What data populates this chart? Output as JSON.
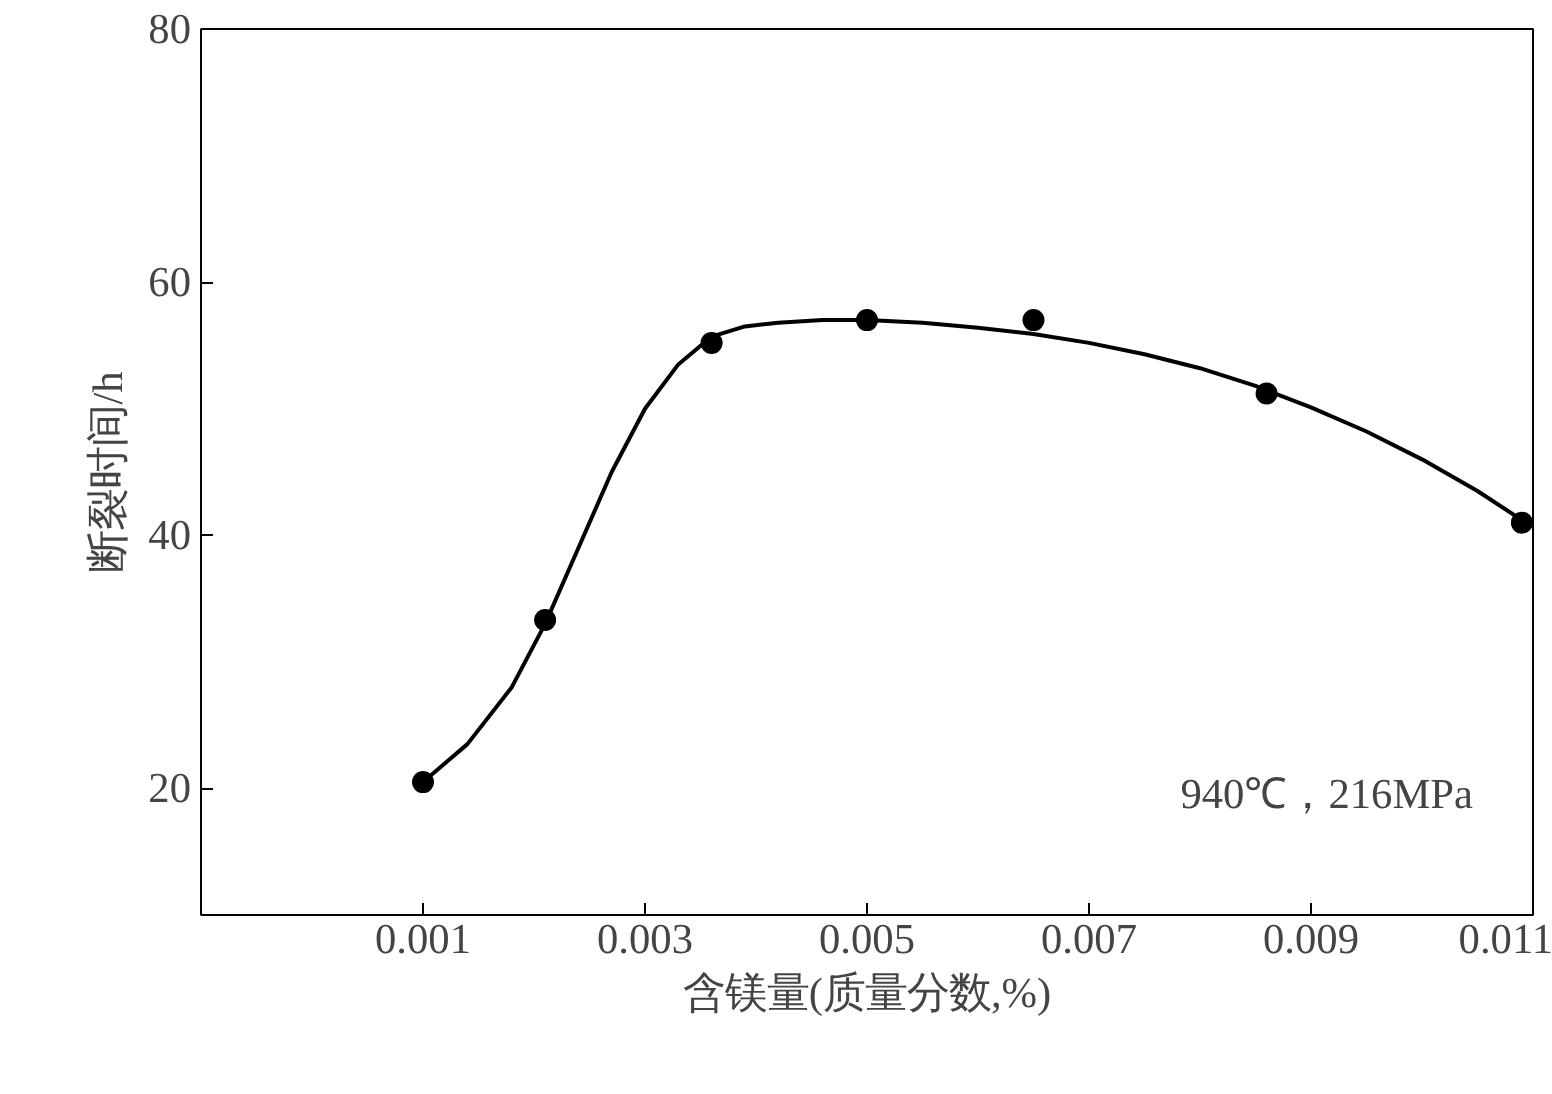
{
  "chart_data": {
    "type": "scatter",
    "xlabel": "含镁量(质量分数,%)",
    "ylabel": "断裂时间/h",
    "annotations": [
      "940℃，216MPa"
    ],
    "xlim": [
      -0.001,
      0.011
    ],
    "ylim": [
      10,
      80
    ],
    "xticks": [
      0.001,
      0.003,
      0.005,
      0.007,
      0.009,
      0.011
    ],
    "yticks": [
      20,
      40,
      60,
      80
    ],
    "grid": false,
    "series": [
      {
        "marker": "circle",
        "color": "#000000",
        "x": [
          0.001,
          0.0021,
          0.0036,
          0.005,
          0.0065,
          0.0086,
          0.0109
        ],
        "values": [
          20.5,
          33.3,
          55.2,
          57,
          57,
          51.2,
          41
        ]
      },
      {
        "type": "line",
        "marker": "none",
        "line_style": "solid",
        "color": "#000000",
        "x": [
          0.001,
          0.0014,
          0.0018,
          0.0021,
          0.0024,
          0.0027,
          0.003,
          0.0033,
          0.0036,
          0.0039,
          0.0042,
          0.0046,
          0.005,
          0.0055,
          0.006,
          0.0065,
          0.007,
          0.0075,
          0.008,
          0.0085,
          0.009,
          0.0095,
          0.01,
          0.0105,
          0.0109
        ],
        "values": [
          20.5,
          23.5,
          28,
          33,
          39,
          45,
          50,
          53.5,
          55.7,
          56.5,
          56.8,
          57,
          57,
          56.8,
          56.4,
          55.9,
          55.2,
          54.3,
          53.2,
          51.8,
          50.1,
          48.2,
          46,
          43.5,
          41.2
        ]
      }
    ]
  }
}
